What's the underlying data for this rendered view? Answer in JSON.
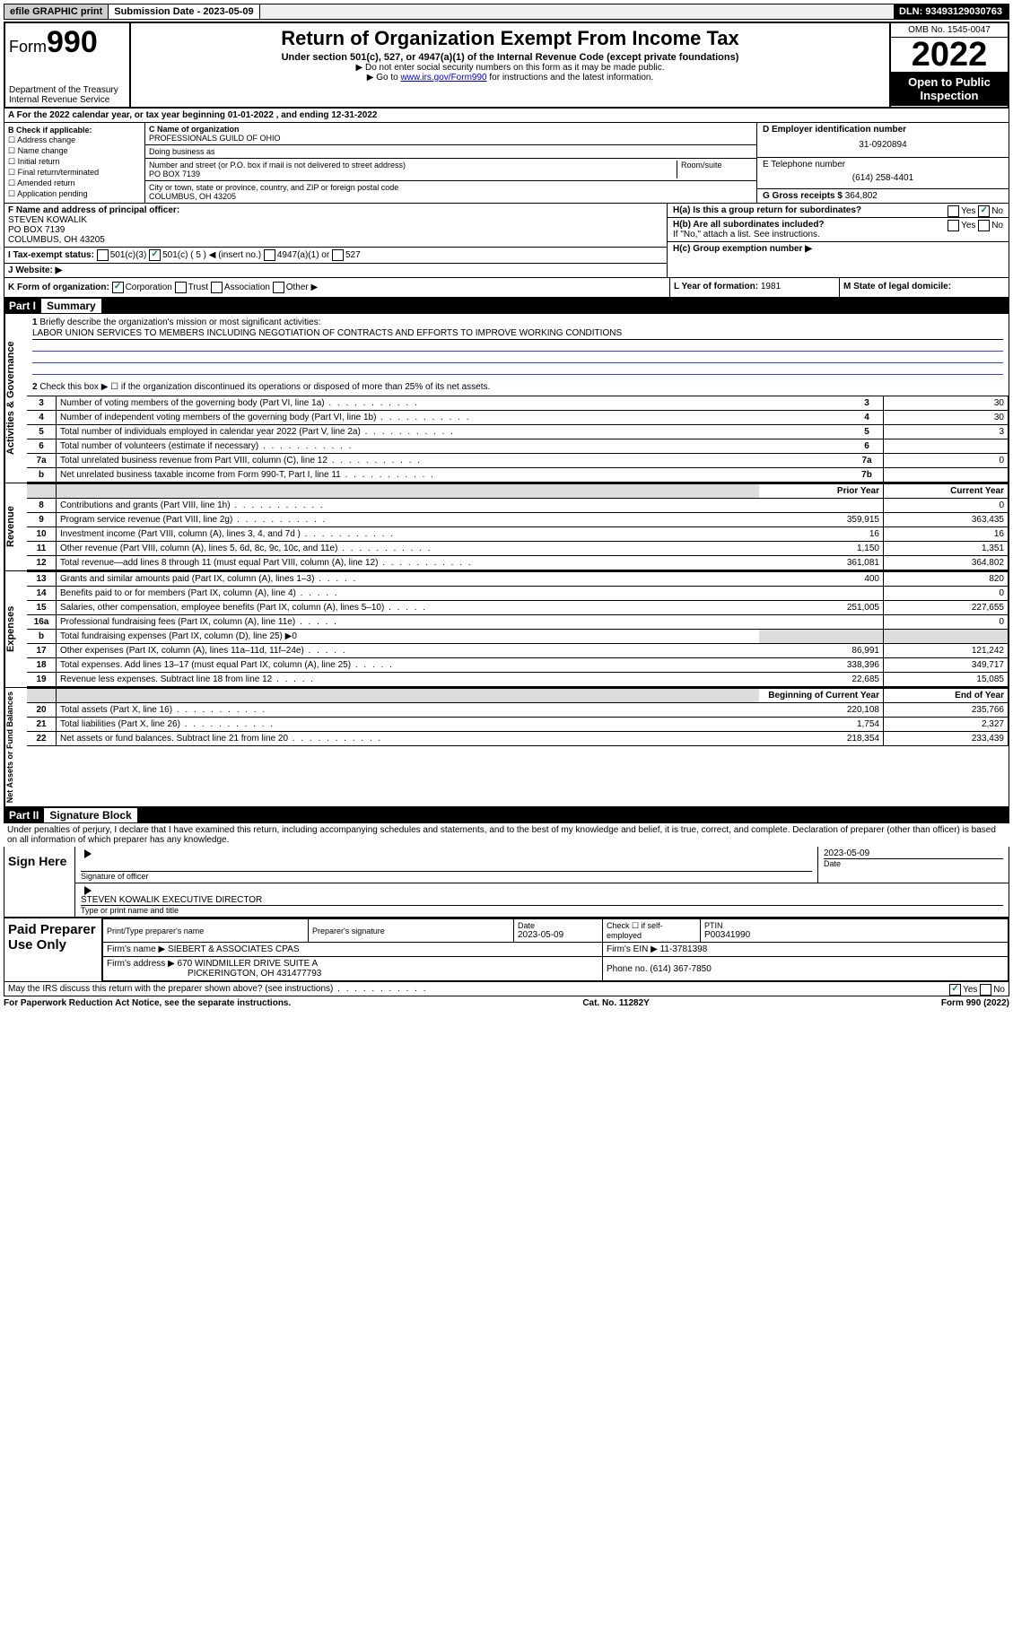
{
  "topbar": {
    "efile": "efile GRAPHIC print",
    "submission_label": "Submission Date - 2023-05-09",
    "dln": "DLN: 93493129030763"
  },
  "header": {
    "form_prefix": "Form",
    "form_number": "990",
    "dept": "Department of the Treasury",
    "irs": "Internal Revenue Service",
    "title": "Return of Organization Exempt From Income Tax",
    "subtitle": "Under section 501(c), 527, or 4947(a)(1) of the Internal Revenue Code (except private foundations)",
    "note1": "▶ Do not enter social security numbers on this form as it may be made public.",
    "note2_a": "▶ Go to ",
    "note2_link": "www.irs.gov/Form990",
    "note2_b": " for instructions and the latest information.",
    "omb": "OMB No. 1545-0047",
    "year": "2022",
    "open": "Open to Public Inspection"
  },
  "sectionA": "A For the 2022 calendar year, or tax year beginning 01-01-2022   , and ending 12-31-2022",
  "colB": {
    "label": "B Check if applicable:",
    "items": [
      "Address change",
      "Name change",
      "Initial return",
      "Final return/terminated",
      "Amended return",
      "Application pending"
    ]
  },
  "colC": {
    "name_label": "C Name of organization",
    "name": "PROFESSIONALS GUILD OF OHIO",
    "dba_label": "Doing business as",
    "dba": "",
    "addr_label": "Number and street (or P.O. box if mail is not delivered to street address)",
    "room_label": "Room/suite",
    "addr": "PO BOX 7139",
    "city_label": "City or town, state or province, country, and ZIP or foreign postal code",
    "city": "COLUMBUS, OH  43205"
  },
  "colD": {
    "ein_label": "D Employer identification number",
    "ein": "31-0920894",
    "phone_label": "E Telephone number",
    "phone": "(614) 258-4401",
    "gross_label": "G Gross receipts $",
    "gross": "364,802"
  },
  "rowF": {
    "label": "F  Name and address of principal officer:",
    "name": "STEVEN KOWALIK",
    "addr1": "PO BOX 7139",
    "addr2": "COLUMBUS, OH  43205"
  },
  "rowH": {
    "ha": "H(a)  Is this a group return for subordinates?",
    "ha_yes": "Yes",
    "ha_no": "No",
    "hb": "H(b)  Are all subordinates included?",
    "hb_yes": "Yes",
    "hb_no": "No",
    "hb_note": "If \"No,\" attach a list. See instructions.",
    "hc": "H(c)  Group exemption number ▶"
  },
  "rowI": {
    "label": "I    Tax-exempt status:",
    "o1": "501(c)(3)",
    "o2": "501(c) ( 5 ) ◀ (insert no.)",
    "o3": "4947(a)(1) or",
    "o4": "527"
  },
  "rowJ": "J    Website: ▶",
  "rowK": {
    "label": "K Form of organization:",
    "o1": "Corporation",
    "o2": "Trust",
    "o3": "Association",
    "o4": "Other ▶",
    "l_label": "L Year of formation: ",
    "l_val": "1981",
    "m_label": "M State of legal domicile:",
    "m_val": ""
  },
  "part1": {
    "hdr": "Part I",
    "title": "Summary"
  },
  "gov": {
    "label": "Activities & Governance",
    "l1": "Briefly describe the organization's mission or most significant activities:",
    "l1_num": "1",
    "mission": "LABOR UNION SERVICES TO MEMBERS INCLUDING NEGOTIATION OF CONTRACTS AND EFFORTS TO IMPROVE WORKING CONDITIONS",
    "l2": "Check this box ▶ ☐  if the organization discontinued its operations or disposed of more than 25% of its net assets.",
    "l2_num": "2",
    "rows": [
      {
        "n": "3",
        "d": "Number of voting members of the governing body (Part VI, line 1a)",
        "b": "3",
        "v": "30"
      },
      {
        "n": "4",
        "d": "Number of independent voting members of the governing body (Part VI, line 1b)",
        "b": "4",
        "v": "30"
      },
      {
        "n": "5",
        "d": "Total number of individuals employed in calendar year 2022 (Part V, line 2a)",
        "b": "5",
        "v": "3"
      },
      {
        "n": "6",
        "d": "Total number of volunteers (estimate if necessary)",
        "b": "6",
        "v": ""
      },
      {
        "n": "7a",
        "d": "Total unrelated business revenue from Part VIII, column (C), line 12",
        "b": "7a",
        "v": "0"
      },
      {
        "n": "b",
        "d": "Net unrelated business taxable income from Form 990-T, Part I, line 11",
        "b": "7b",
        "v": ""
      }
    ]
  },
  "rev": {
    "label": "Revenue",
    "hdr_prior": "Prior Year",
    "hdr_curr": "Current Year",
    "rows": [
      {
        "n": "8",
        "d": "Contributions and grants (Part VIII, line 1h)",
        "p": "",
        "c": "0"
      },
      {
        "n": "9",
        "d": "Program service revenue (Part VIII, line 2g)",
        "p": "359,915",
        "c": "363,435"
      },
      {
        "n": "10",
        "d": "Investment income (Part VIII, column (A), lines 3, 4, and 7d )",
        "p": "16",
        "c": "16"
      },
      {
        "n": "11",
        "d": "Other revenue (Part VIII, column (A), lines 5, 6d, 8c, 9c, 10c, and 11e)",
        "p": "1,150",
        "c": "1,351"
      },
      {
        "n": "12",
        "d": "Total revenue—add lines 8 through 11 (must equal Part VIII, column (A), line 12)",
        "p": "361,081",
        "c": "364,802"
      }
    ]
  },
  "exp": {
    "label": "Expenses",
    "rows": [
      {
        "n": "13",
        "d": "Grants and similar amounts paid (Part IX, column (A), lines 1–3)",
        "p": "400",
        "c": "820"
      },
      {
        "n": "14",
        "d": "Benefits paid to or for members (Part IX, column (A), line 4)",
        "p": "",
        "c": "0"
      },
      {
        "n": "15",
        "d": "Salaries, other compensation, employee benefits (Part IX, column (A), lines 5–10)",
        "p": "251,005",
        "c": "227,655"
      },
      {
        "n": "16a",
        "d": "Professional fundraising fees (Part IX, column (A), line 11e)",
        "p": "",
        "c": "0"
      },
      {
        "n": "b",
        "d": "Total fundraising expenses (Part IX, column (D), line 25) ▶0",
        "p": "—",
        "c": "—"
      },
      {
        "n": "17",
        "d": "Other expenses (Part IX, column (A), lines 11a–11d, 11f–24e)",
        "p": "86,991",
        "c": "121,242"
      },
      {
        "n": "18",
        "d": "Total expenses. Add lines 13–17 (must equal Part IX, column (A), line 25)",
        "p": "338,396",
        "c": "349,717"
      },
      {
        "n": "19",
        "d": "Revenue less expenses. Subtract line 18 from line 12",
        "p": "22,685",
        "c": "15,085"
      }
    ]
  },
  "net": {
    "label": "Net Assets or Fund Balances",
    "hdr_begin": "Beginning of Current Year",
    "hdr_end": "End of Year",
    "rows": [
      {
        "n": "20",
        "d": "Total assets (Part X, line 16)",
        "p": "220,108",
        "c": "235,766"
      },
      {
        "n": "21",
        "d": "Total liabilities (Part X, line 26)",
        "p": "1,754",
        "c": "2,327"
      },
      {
        "n": "22",
        "d": "Net assets or fund balances. Subtract line 21 from line 20",
        "p": "218,354",
        "c": "233,439"
      }
    ]
  },
  "part2": {
    "hdr": "Part II",
    "title": "Signature Block",
    "text": "Under penalties of perjury, I declare that I have examined this return, including accompanying schedules and statements, and to the best of my knowledge and belief, it is true, correct, and complete. Declaration of preparer (other than officer) is based on all information of which preparer has any knowledge."
  },
  "sign": {
    "label": "Sign Here",
    "sig_label": "Signature of officer",
    "date_label": "Date",
    "date": "2023-05-09",
    "name": "STEVEN KOWALIK  EXECUTIVE DIRECTOR",
    "name_label": "Type or print name and title"
  },
  "prep": {
    "label": "Paid Preparer Use Only",
    "h1": "Print/Type preparer's name",
    "h2": "Preparer's signature",
    "h3": "Date",
    "h3v": "2023-05-09",
    "h4": "Check ☐ if self-employed",
    "h5": "PTIN",
    "h5v": "P00341990",
    "firm_label": "Firm's name    ▶",
    "firm": "SIEBERT & ASSOCIATES CPAS",
    "ein_label": "Firm's EIN ▶",
    "ein": "11-3781398",
    "addr_label": "Firm's address ▶",
    "addr1": "670 WINDMILLER DRIVE SUITE A",
    "addr2": "PICKERINGTON, OH  431477793",
    "phone_label": "Phone no.",
    "phone": "(614) 367-7850",
    "discuss": "May the IRS discuss this return with the preparer shown above? (see instructions)",
    "yes": "Yes",
    "no": "No"
  },
  "footer": {
    "left": "For Paperwork Reduction Act Notice, see the separate instructions.",
    "mid": "Cat. No. 11282Y",
    "right": "Form 990 (2022)"
  }
}
